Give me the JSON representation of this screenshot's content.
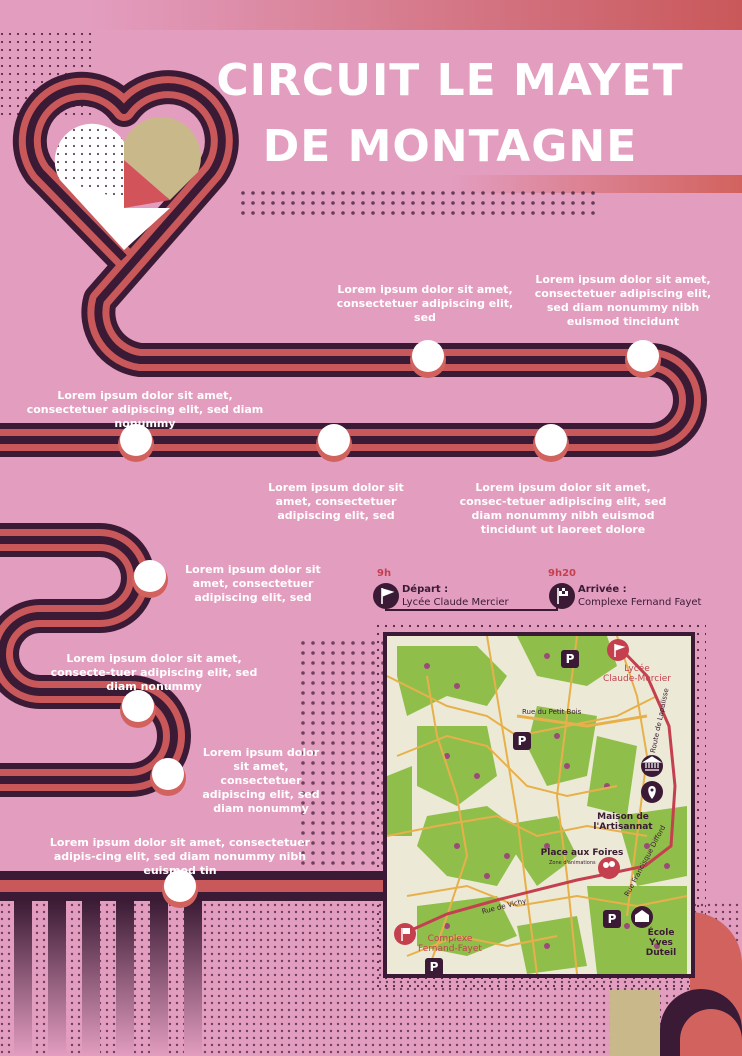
{
  "title": "CIRCUIT LE MAYET DE MONTAGNE",
  "colors": {
    "background": "#e39dbf",
    "road_dark": "#3a1a34",
    "road_stripe": "#c9585a",
    "accent_red": "#c4404f",
    "map_green": "#8fbf4a",
    "map_road": "#e8b04a",
    "route": "#c4404f"
  },
  "blurbs": [
    "Lorem ipsum dolor sit amet, consectetuer adipiscing elit, sed",
    "Lorem ipsum dolor sit amet, consectetuer adipiscing elit, sed diam nonummy nibh euismod tincidunt",
    "Lorem ipsum dolor sit amet, consectetuer adipiscing elit, sed diam nonummy",
    "Lorem ipsum dolor sit amet, consectetuer adipiscing elit, sed",
    "Lorem ipsum dolor sit amet, consec-tetuer adipiscing elit, sed diam nonummy nibh euismod tincidunt ut laoreet dolore",
    "Lorem ipsum dolor sit amet, consectetuer adipiscing elit, sed",
    "Lorem ipsum dolor sit amet, consecte-tuer adipiscing elit, sed diam nonummy",
    "Lorem ipsum dolor sit amet, consectetuer adipiscing elit, sed diam nonummy",
    "Lorem ipsum dolor sit amet, consectetuer adipis-cing elit, sed diam nonummy nibh euismod tin"
  ],
  "departure": {
    "time": "9h",
    "label": "Départ :",
    "place": "Lycée Claude Mercier",
    "icon": "flag-icon"
  },
  "arrival": {
    "time": "9h20",
    "label": "Arrivée :",
    "place": "Complexe Fernand Fayet",
    "icon": "checkered-flag-icon"
  },
  "map": {
    "places": {
      "lycee": "Lycée\nClaude-Mercier",
      "maison": "Maison de\nl'Artisannat",
      "place_foires": "Place aux Foires",
      "zone": "Zone d'animations",
      "ecole": "École\nYves Duteil",
      "complexe": "Complexe\nFernand-Fayet"
    },
    "streets": {
      "petit_bois": "Rue du Petit Bois",
      "lapalisse": "Route de Lapalisse",
      "difford": "Rue Francisque Difford",
      "vichy": "Rue de Vichy"
    },
    "parking_label": "P"
  }
}
